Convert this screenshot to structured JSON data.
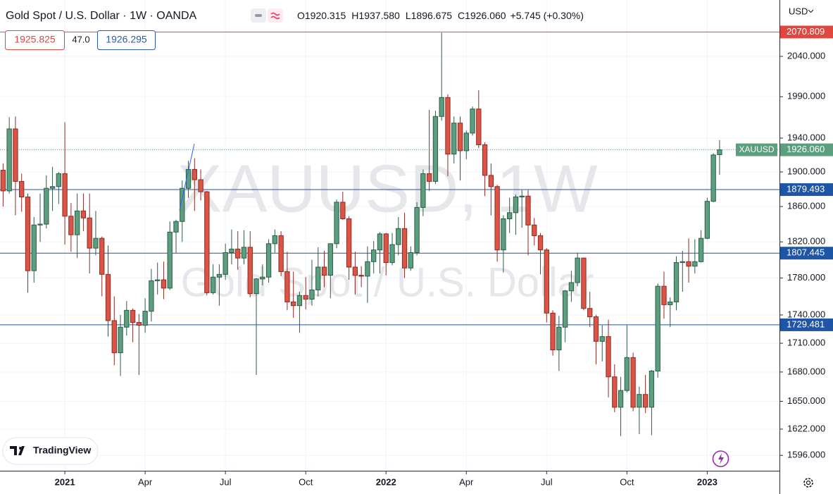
{
  "chart_data": {
    "type": "candlestick",
    "title": "Gold Spot / U.S. Dollar · 1W · OANDA",
    "legend_values": [
      {
        "label": "O",
        "value": "1920.315"
      },
      {
        "label": "H",
        "value": "1937.580"
      },
      {
        "label": "L",
        "value": "1896.675"
      },
      {
        "label": "C",
        "value": "1926.060"
      }
    ],
    "change": "+5.745 (+0.30%)",
    "sell_price": "1925.825",
    "spread": "47.0",
    "buy_price": "1926.295",
    "watermark": {
      "symbol": "XAUUSD, 1W",
      "description": "Gold Spot / U.S. Dollar"
    },
    "currency": "USD",
    "brand": "TradingView",
    "symbol": "XAUUSD",
    "last_price": {
      "value": 1926.06,
      "label": "1926.060"
    },
    "log_scale": true,
    "grid": true,
    "up_color": "#5b9f7f",
    "down_color": "#dc5446",
    "xlim": [
      -0.5,
      125.7
    ],
    "ylim": [
      1581,
      2112
    ],
    "xticks": [
      {
        "value": 10,
        "label": "2021"
      },
      {
        "value": 23,
        "label": "Apr"
      },
      {
        "value": 36,
        "label": "Jul"
      },
      {
        "value": 49,
        "label": "Oct"
      },
      {
        "value": 62,
        "label": "2022"
      },
      {
        "value": 75,
        "label": "Apr"
      },
      {
        "value": 88,
        "label": "Jul"
      },
      {
        "value": 101,
        "label": "Oct"
      },
      {
        "value": 114,
        "label": "2023"
      }
    ],
    "yticks": [
      {
        "value": 2040,
        "label": "2040.000"
      },
      {
        "value": 1990,
        "label": "1990.000"
      },
      {
        "value": 1940,
        "label": "1940.000"
      },
      {
        "value": 1900,
        "label": "1900.000"
      },
      {
        "value": 1860,
        "label": "1860.000"
      },
      {
        "value": 1820,
        "label": "1820.000"
      },
      {
        "value": 1780,
        "label": "1780.000"
      },
      {
        "value": 1740,
        "label": "1740.000"
      },
      {
        "value": 1710,
        "label": "1710.000"
      },
      {
        "value": 1680,
        "label": "1680.000"
      },
      {
        "value": 1650,
        "label": "1650.000"
      },
      {
        "value": 1622,
        "label": "1622.000"
      },
      {
        "value": 1596,
        "label": "1596.000"
      }
    ],
    "levels": [
      {
        "value": 2070.809,
        "label": "2070.809",
        "color": "#e2473f"
      },
      {
        "value": 1879.493,
        "label": "1879.493",
        "color": "#1e55a5"
      },
      {
        "value": 1807.445,
        "label": "1807.445",
        "color": "#1e55a5"
      },
      {
        "value": 1729.481,
        "label": "1729.481",
        "color": "#1e55a5"
      }
    ],
    "open": [
      1902,
      1878,
      1951,
      1889,
      1871,
      1788,
      1839,
      1840,
      1881,
      1883,
      1898,
      1849,
      1828,
      1855,
      1847,
      1813,
      1824,
      1784,
      1734,
      1700,
      1727,
      1745,
      1732,
      1729,
      1744,
      1777,
      1778,
      1769,
      1831,
      1843,
      1881,
      1903,
      1891,
      1877,
      1764,
      1781,
      1784,
      1808,
      1812,
      1802,
      1814,
      1763,
      1779,
      1781,
      1818,
      1827,
      1787,
      1754,
      1750,
      1761,
      1757,
      1767,
      1792,
      1783,
      1818,
      1865,
      1846,
      1792,
      1783,
      1782,
      1798,
      1811,
      1829,
      1797,
      1817,
      1835,
      1791,
      1808,
      1859,
      1898,
      1889,
      1966,
      1989,
      1921,
      1958,
      1925,
      1946,
      1975,
      1932,
      1896,
      1883,
      1811,
      1846,
      1853,
      1871,
      1872,
      1839,
      1827,
      1811,
      1742,
      1703,
      1727,
      1766,
      1775,
      1802,
      1747,
      1738,
      1712,
      1717,
      1675,
      1644,
      1661,
      1695,
      1644,
      1657,
      1644,
      1681,
      1771,
      1751,
      1754,
      1797,
      1798,
      1793,
      1798,
      1824,
      1866,
      1920.315
    ],
    "high": [
      1910,
      1965,
      1966,
      1898,
      1875,
      1848,
      1875,
      1896,
      1906,
      1900,
      1959,
      1864,
      1875,
      1875,
      1875,
      1855,
      1826,
      1816,
      1760,
      1740,
      1755,
      1747,
      1741,
      1758,
      1790,
      1797,
      1798,
      1843,
      1845,
      1890,
      1913,
      1916,
      1903,
      1878,
      1795,
      1795,
      1818,
      1834,
      1832,
      1833,
      1832,
      1780,
      1795,
      1823,
      1834,
      1832,
      1809,
      1787,
      1765,
      1781,
      1800,
      1814,
      1810,
      1818,
      1868,
      1877,
      1849,
      1809,
      1793,
      1815,
      1821,
      1831,
      1830,
      1830,
      1848,
      1853,
      1815,
      1865,
      1903,
      1974,
      1973,
      2070,
      1993,
      1966,
      1966,
      1949,
      1978,
      1998,
      1935,
      1910,
      1885,
      1850,
      1870,
      1874,
      1879,
      1879,
      1847,
      1830,
      1813,
      1745,
      1739,
      1767,
      1788,
      1808,
      1802,
      1765,
      1740,
      1729,
      1735,
      1688,
      1675,
      1729,
      1700,
      1665,
      1677,
      1682,
      1774,
      1787,
      1759,
      1804,
      1810,
      1824,
      1823,
      1833,
      1870,
      1922,
      1937.58
    ],
    "low": [
      1860,
      1875,
      1850,
      1854,
      1764,
      1775,
      1820,
      1835,
      1855,
      1863,
      1817,
      1809,
      1802,
      1832,
      1785,
      1805,
      1760,
      1717,
      1687,
      1676,
      1718,
      1711,
      1677,
      1721,
      1733,
      1762,
      1757,
      1767,
      1808,
      1820,
      1870,
      1855,
      1867,
      1761,
      1762,
      1750,
      1778,
      1795,
      1789,
      1795,
      1759,
      1677,
      1772,
      1775,
      1808,
      1782,
      1745,
      1737,
      1721,
      1746,
      1750,
      1760,
      1770,
      1758,
      1813,
      1845,
      1778,
      1762,
      1770,
      1753,
      1785,
      1785,
      1783,
      1794,
      1805,
      1780,
      1788,
      1805,
      1849,
      1878,
      1886,
      1961,
      1895,
      1910,
      1890,
      1915,
      1943,
      1928,
      1872,
      1850,
      1798,
      1786,
      1830,
      1828,
      1836,
      1805,
      1816,
      1784,
      1732,
      1697,
      1681,
      1711,
      1754,
      1771,
      1745,
      1727,
      1688,
      1691,
      1654,
      1639,
      1615,
      1659,
      1640,
      1617,
      1638,
      1616,
      1674,
      1736,
      1727,
      1745,
      1765,
      1775,
      1785,
      1797,
      1823,
      1865,
      1896.675
    ],
    "close": [
      1878,
      1951,
      1889,
      1871,
      1788,
      1839,
      1840,
      1881,
      1883,
      1898,
      1849,
      1828,
      1855,
      1847,
      1813,
      1824,
      1784,
      1734,
      1700,
      1727,
      1745,
      1732,
      1729,
      1744,
      1777,
      1778,
      1769,
      1831,
      1843,
      1881,
      1903,
      1891,
      1877,
      1764,
      1781,
      1784,
      1808,
      1812,
      1802,
      1814,
      1763,
      1779,
      1781,
      1818,
      1827,
      1787,
      1754,
      1750,
      1761,
      1757,
      1767,
      1792,
      1783,
      1818,
      1865,
      1846,
      1792,
      1783,
      1782,
      1798,
      1811,
      1829,
      1797,
      1817,
      1835,
      1791,
      1808,
      1859,
      1898,
      1889,
      1966,
      1989,
      1921,
      1958,
      1925,
      1946,
      1975,
      1932,
      1896,
      1883,
      1811,
      1846,
      1853,
      1871,
      1872,
      1839,
      1827,
      1811,
      1742,
      1703,
      1727,
      1766,
      1775,
      1802,
      1747,
      1738,
      1712,
      1717,
      1675,
      1644,
      1661,
      1695,
      1644,
      1657,
      1644,
      1681,
      1771,
      1751,
      1754,
      1797,
      1798,
      1793,
      1798,
      1824,
      1866,
      1920,
      1926.06
    ]
  }
}
